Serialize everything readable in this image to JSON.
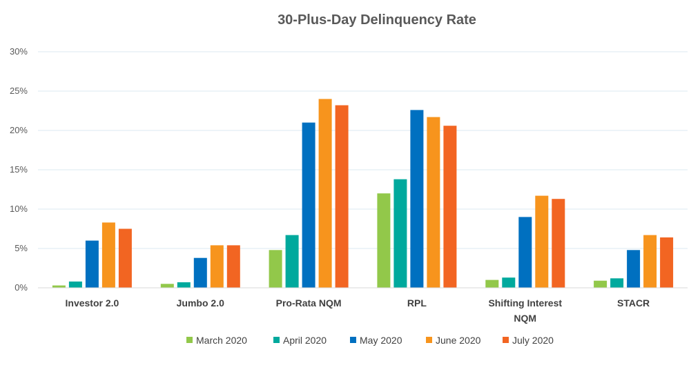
{
  "chart_data": {
    "type": "bar",
    "title": "30-Plus-Day Delinquency Rate",
    "xlabel": "",
    "ylabel": "",
    "ylim": [
      0,
      30
    ],
    "yticks": [
      0,
      5,
      10,
      15,
      20,
      25,
      30
    ],
    "ytick_labels": [
      "0%",
      "5%",
      "10%",
      "15%",
      "20%",
      "25%",
      "30%"
    ],
    "categories": [
      [
        "Investor 2.0"
      ],
      [
        "Jumbo 2.0"
      ],
      [
        "Pro-Rata NQM"
      ],
      [
        "RPL"
      ],
      [
        "Shifting Interest",
        "NQM"
      ],
      [
        "STACR"
      ]
    ],
    "series": [
      {
        "name": "March 2020",
        "color": "#92c84a",
        "values": [
          0.3,
          0.5,
          4.8,
          12.0,
          1.0,
          0.9
        ]
      },
      {
        "name": "April 2020",
        "color": "#00a99d",
        "values": [
          0.8,
          0.7,
          6.7,
          13.8,
          1.3,
          1.2
        ]
      },
      {
        "name": "May 2020",
        "color": "#0070c0",
        "values": [
          6.0,
          3.8,
          21.0,
          22.6,
          9.0,
          4.8
        ]
      },
      {
        "name": "June 2020",
        "color": "#f7941d",
        "values": [
          8.3,
          5.4,
          24.0,
          21.7,
          11.7,
          6.7
        ]
      },
      {
        "name": "July 2020",
        "color": "#f26522",
        "values": [
          7.5,
          5.4,
          23.2,
          20.6,
          11.3,
          6.4
        ]
      }
    ],
    "grid": true,
    "legend_position": "bottom"
  }
}
